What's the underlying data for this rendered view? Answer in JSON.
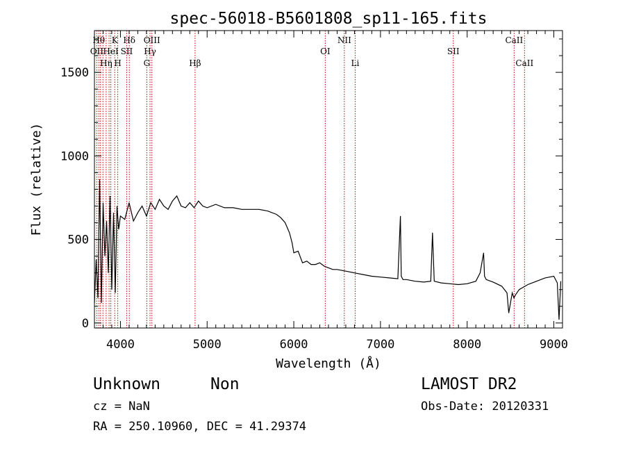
{
  "chart_data": {
    "type": "line",
    "title": "spec-56018-B5601808_sp11-165.fits",
    "xlabel": "Wavelength (Å)",
    "ylabel": "Flux (relative)",
    "xlim": [
      3700,
      9100
    ],
    "ylim": [
      -30,
      1750
    ],
    "x_ticks": [
      4000,
      5000,
      6000,
      7000,
      8000,
      9000
    ],
    "y_ticks": [
      0,
      500,
      1000,
      1500
    ],
    "grid": false,
    "series": [
      {
        "x": [
          3700,
          3720,
          3740,
          3760,
          3780,
          3800,
          3820,
          3840,
          3860,
          3880,
          3900,
          3920,
          3940,
          3960,
          3980,
          4000,
          4050,
          4100,
          4150,
          4200,
          4250,
          4300,
          4350,
          4400,
          4450,
          4500,
          4550,
          4600,
          4650,
          4700,
          4750,
          4800,
          4850,
          4900,
          4950,
          5000,
          5100,
          5200,
          5300,
          5400,
          5500,
          5600,
          5700,
          5800,
          5850,
          5900,
          5950,
          5980,
          6000,
          6050,
          6100,
          6150,
          6200,
          6250,
          6300,
          6350,
          6400,
          6450,
          6500,
          6600,
          6700,
          6800,
          6900,
          7000,
          7100,
          7200,
          7230,
          7240,
          7260,
          7300,
          7400,
          7500,
          7580,
          7600,
          7620,
          7700,
          7800,
          7900,
          8000,
          8100,
          8150,
          8190,
          8200,
          8220,
          8300,
          8400,
          8460,
          8480,
          8500,
          8520,
          8540,
          8560,
          8600,
          8700,
          8800,
          8900,
          9000,
          9040,
          9060,
          9080
        ],
        "y": [
          120,
          380,
          150,
          860,
          120,
          720,
          400,
          610,
          300,
          760,
          200,
          660,
          180,
          700,
          560,
          640,
          620,
          720,
          610,
          660,
          700,
          640,
          720,
          680,
          740,
          700,
          680,
          730,
          760,
          700,
          690,
          720,
          690,
          730,
          700,
          690,
          710,
          690,
          690,
          680,
          680,
          680,
          670,
          650,
          630,
          600,
          540,
          480,
          420,
          430,
          360,
          370,
          350,
          350,
          360,
          340,
          330,
          320,
          320,
          310,
          300,
          290,
          280,
          275,
          270,
          265,
          640,
          280,
          260,
          260,
          250,
          245,
          250,
          540,
          250,
          240,
          235,
          230,
          235,
          250,
          300,
          420,
          280,
          260,
          245,
          220,
          180,
          60,
          120,
          180,
          150,
          170,
          200,
          230,
          250,
          270,
          280,
          240,
          20,
          250
        ]
      }
    ],
    "lines": [
      {
        "x": 3727,
        "label": "OII",
        "row": 2
      },
      {
        "x": 3750,
        "label": "Hθ",
        "row": 1
      },
      {
        "x": 3770,
        "label": "",
        "row": 0
      },
      {
        "x": 3798,
        "label": "",
        "row": 0
      },
      {
        "x": 3835,
        "label": "Hη",
        "row": 3
      },
      {
        "x": 3869,
        "label": "",
        "row": 0
      },
      {
        "x": 3889,
        "label": "HeI",
        "row": 2
      },
      {
        "x": 3934,
        "label": "K",
        "row": 1
      },
      {
        "x": 3969,
        "label": "H",
        "row": 3
      },
      {
        "x": 4072,
        "label": "SII",
        "row": 2
      },
      {
        "x": 4102,
        "label": "Hδ",
        "row": 1
      },
      {
        "x": 4304,
        "label": "G",
        "row": 3
      },
      {
        "x": 4341,
        "label": "Hγ",
        "row": 2
      },
      {
        "x": 4363,
        "label": "OIII",
        "row": 1
      },
      {
        "x": 4861,
        "label": "Hβ",
        "row": 3
      },
      {
        "x": 6363,
        "label": "OI",
        "row": 2
      },
      {
        "x": 6583,
        "label": "NII",
        "row": 1
      },
      {
        "x": 6708,
        "label": "Li",
        "row": 3
      },
      {
        "x": 7840,
        "label": "SII",
        "row": 2
      },
      {
        "x": 8542,
        "label": "CaII",
        "row": 1
      },
      {
        "x": 8662,
        "label": "CaII",
        "row": 3
      }
    ]
  },
  "footer": {
    "class_text": "Unknown",
    "subclass_text": "Non",
    "cz_text": "cz = NaN",
    "coords_text": "RA = 250.10960, DEC =  41.29374",
    "survey_text": "LAMOST DR2",
    "obs_date_text": "Obs-Date: 20120331"
  }
}
